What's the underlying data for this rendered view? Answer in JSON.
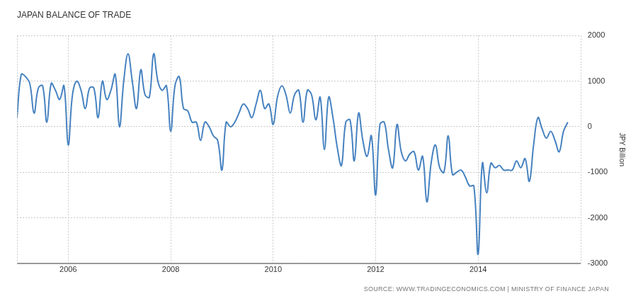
{
  "chart_data": {
    "type": "line",
    "title": "JAPAN BALANCE OF TRADE",
    "y_label": "JPY Billion",
    "source": "SOURCE: WWW.TRADINGECONOMICS.COM | MINISTRY OF FINANCE JAPAN",
    "color": "#4682c0",
    "grid": true,
    "xlim": [
      2005,
      2016
    ],
    "xticks": [
      2006,
      2008,
      2010,
      2012,
      2014
    ],
    "ylim": [
      -3000,
      2000
    ],
    "yticks": [
      -3000,
      -2000,
      -1000,
      0,
      1000,
      2000
    ],
    "x": [
      2005,
      2005.083,
      2005.167,
      2005.25,
      2005.333,
      2005.417,
      2005.5,
      2005.583,
      2005.667,
      2005.75,
      2005.833,
      2005.917,
      2006,
      2006.083,
      2006.167,
      2006.25,
      2006.333,
      2006.417,
      2006.5,
      2006.583,
      2006.667,
      2006.75,
      2006.833,
      2006.917,
      2007,
      2007.083,
      2007.167,
      2007.25,
      2007.333,
      2007.417,
      2007.5,
      2007.583,
      2007.667,
      2007.75,
      2007.833,
      2007.917,
      2008,
      2008.083,
      2008.167,
      2008.25,
      2008.333,
      2008.417,
      2008.5,
      2008.583,
      2008.667,
      2008.75,
      2008.833,
      2008.917,
      2009,
      2009.083,
      2009.167,
      2009.25,
      2009.333,
      2009.417,
      2009.5,
      2009.583,
      2009.667,
      2009.75,
      2009.833,
      2009.917,
      2010,
      2010.083,
      2010.167,
      2010.25,
      2010.333,
      2010.417,
      2010.5,
      2010.583,
      2010.667,
      2010.75,
      2010.833,
      2010.917,
      2011,
      2011.083,
      2011.167,
      2011.25,
      2011.333,
      2011.417,
      2011.5,
      2011.583,
      2011.667,
      2011.75,
      2011.833,
      2011.917,
      2012,
      2012.083,
      2012.167,
      2012.25,
      2012.333,
      2012.417,
      2012.5,
      2012.583,
      2012.667,
      2012.75,
      2012.833,
      2012.917,
      2013,
      2013.083,
      2013.167,
      2013.25,
      2013.333,
      2013.417,
      2013.5,
      2013.583,
      2013.667,
      2013.75,
      2013.833,
      2013.917,
      2014,
      2014.083,
      2014.167,
      2014.25,
      2014.333,
      2014.417,
      2014.5,
      2014.583,
      2014.667,
      2014.75,
      2014.833,
      2014.917,
      2015,
      2015.083,
      2015.167,
      2015.25,
      2015.333,
      2015.417,
      2015.5,
      2015.583,
      2015.667,
      2015.75
    ],
    "values": [
      200,
      1150,
      1100,
      950,
      300,
      850,
      900,
      100,
      950,
      800,
      600,
      900,
      -400,
      700,
      1000,
      800,
      400,
      850,
      850,
      200,
      1000,
      600,
      800,
      1150,
      0,
      1000,
      1600,
      1000,
      400,
      1250,
      700,
      650,
      1600,
      1000,
      800,
      900,
      -100,
      900,
      1100,
      400,
      350,
      100,
      100,
      -300,
      100,
      0,
      -200,
      -300,
      -950,
      100,
      0,
      100,
      300,
      500,
      400,
      200,
      500,
      800,
      400,
      500,
      50,
      650,
      900,
      700,
      300,
      700,
      800,
      100,
      800,
      700,
      150,
      650,
      -500,
      650,
      200,
      -450,
      -850,
      100,
      150,
      -750,
      300,
      -300,
      -650,
      -200,
      -1500,
      50,
      100,
      -500,
      -900,
      50,
      -550,
      -750,
      -600,
      -550,
      -950,
      -650,
      -1650,
      -800,
      -400,
      -900,
      -1000,
      -200,
      -1050,
      -1000,
      -950,
      -1100,
      -1300,
      -1300,
      -2800,
      -800,
      -1450,
      -800,
      -900,
      -850,
      -950,
      -950,
      -950,
      -750,
      -900,
      -700,
      -1200,
      -400,
      200,
      -50,
      -250,
      -100,
      -300,
      -550,
      -100,
      100
    ]
  }
}
